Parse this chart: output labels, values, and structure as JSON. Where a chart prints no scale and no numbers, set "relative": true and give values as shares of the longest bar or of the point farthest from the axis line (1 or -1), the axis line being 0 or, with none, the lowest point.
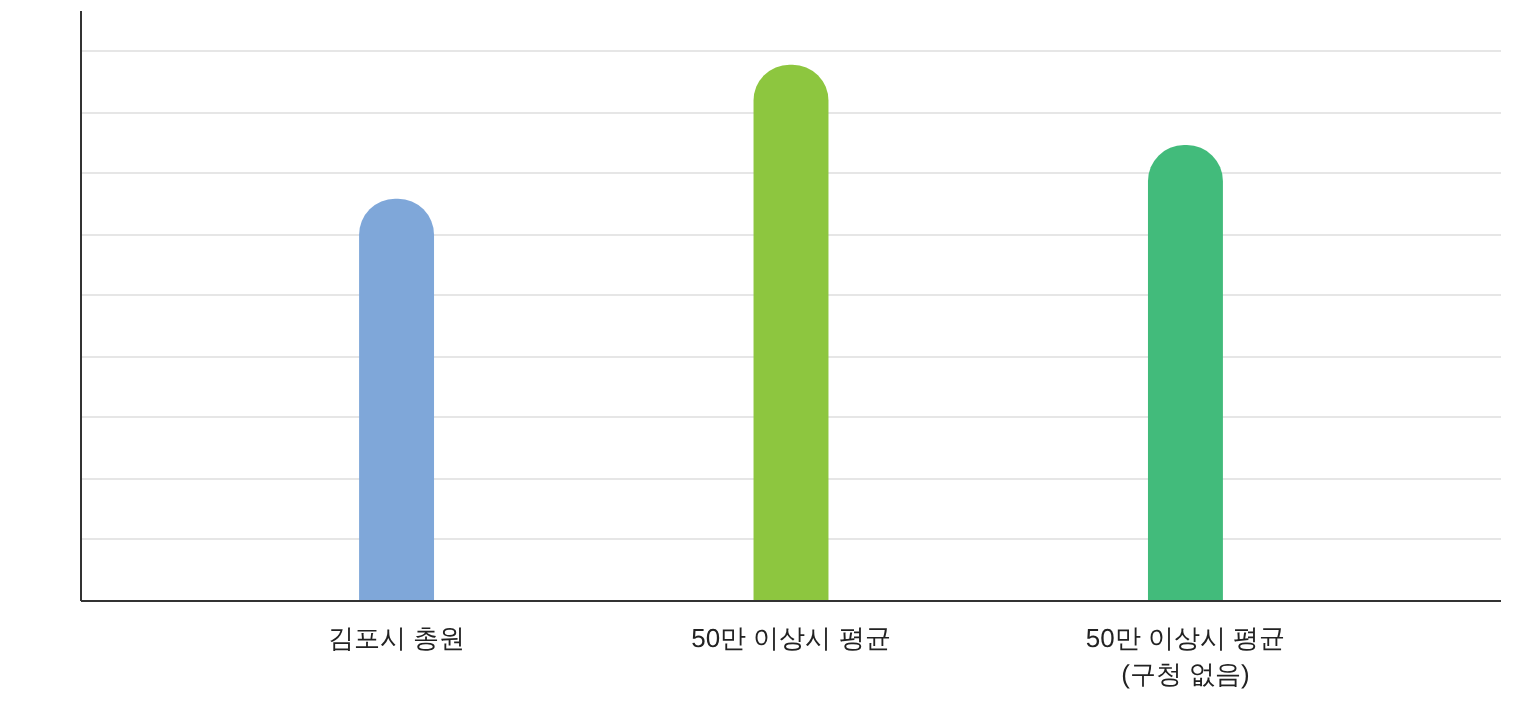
{
  "chart_data": {
    "type": "bar",
    "relative": true,
    "categories": [
      "김포시 총원",
      "50만 이상시 평균",
      "50만 이상시 평균\n(구청 없음)"
    ],
    "values": [
      0.75,
      1,
      0.85
    ],
    "colors": [
      "#7fa7d9",
      "#8dc63f",
      "#42bb7b"
    ],
    "grid": "y"
  }
}
